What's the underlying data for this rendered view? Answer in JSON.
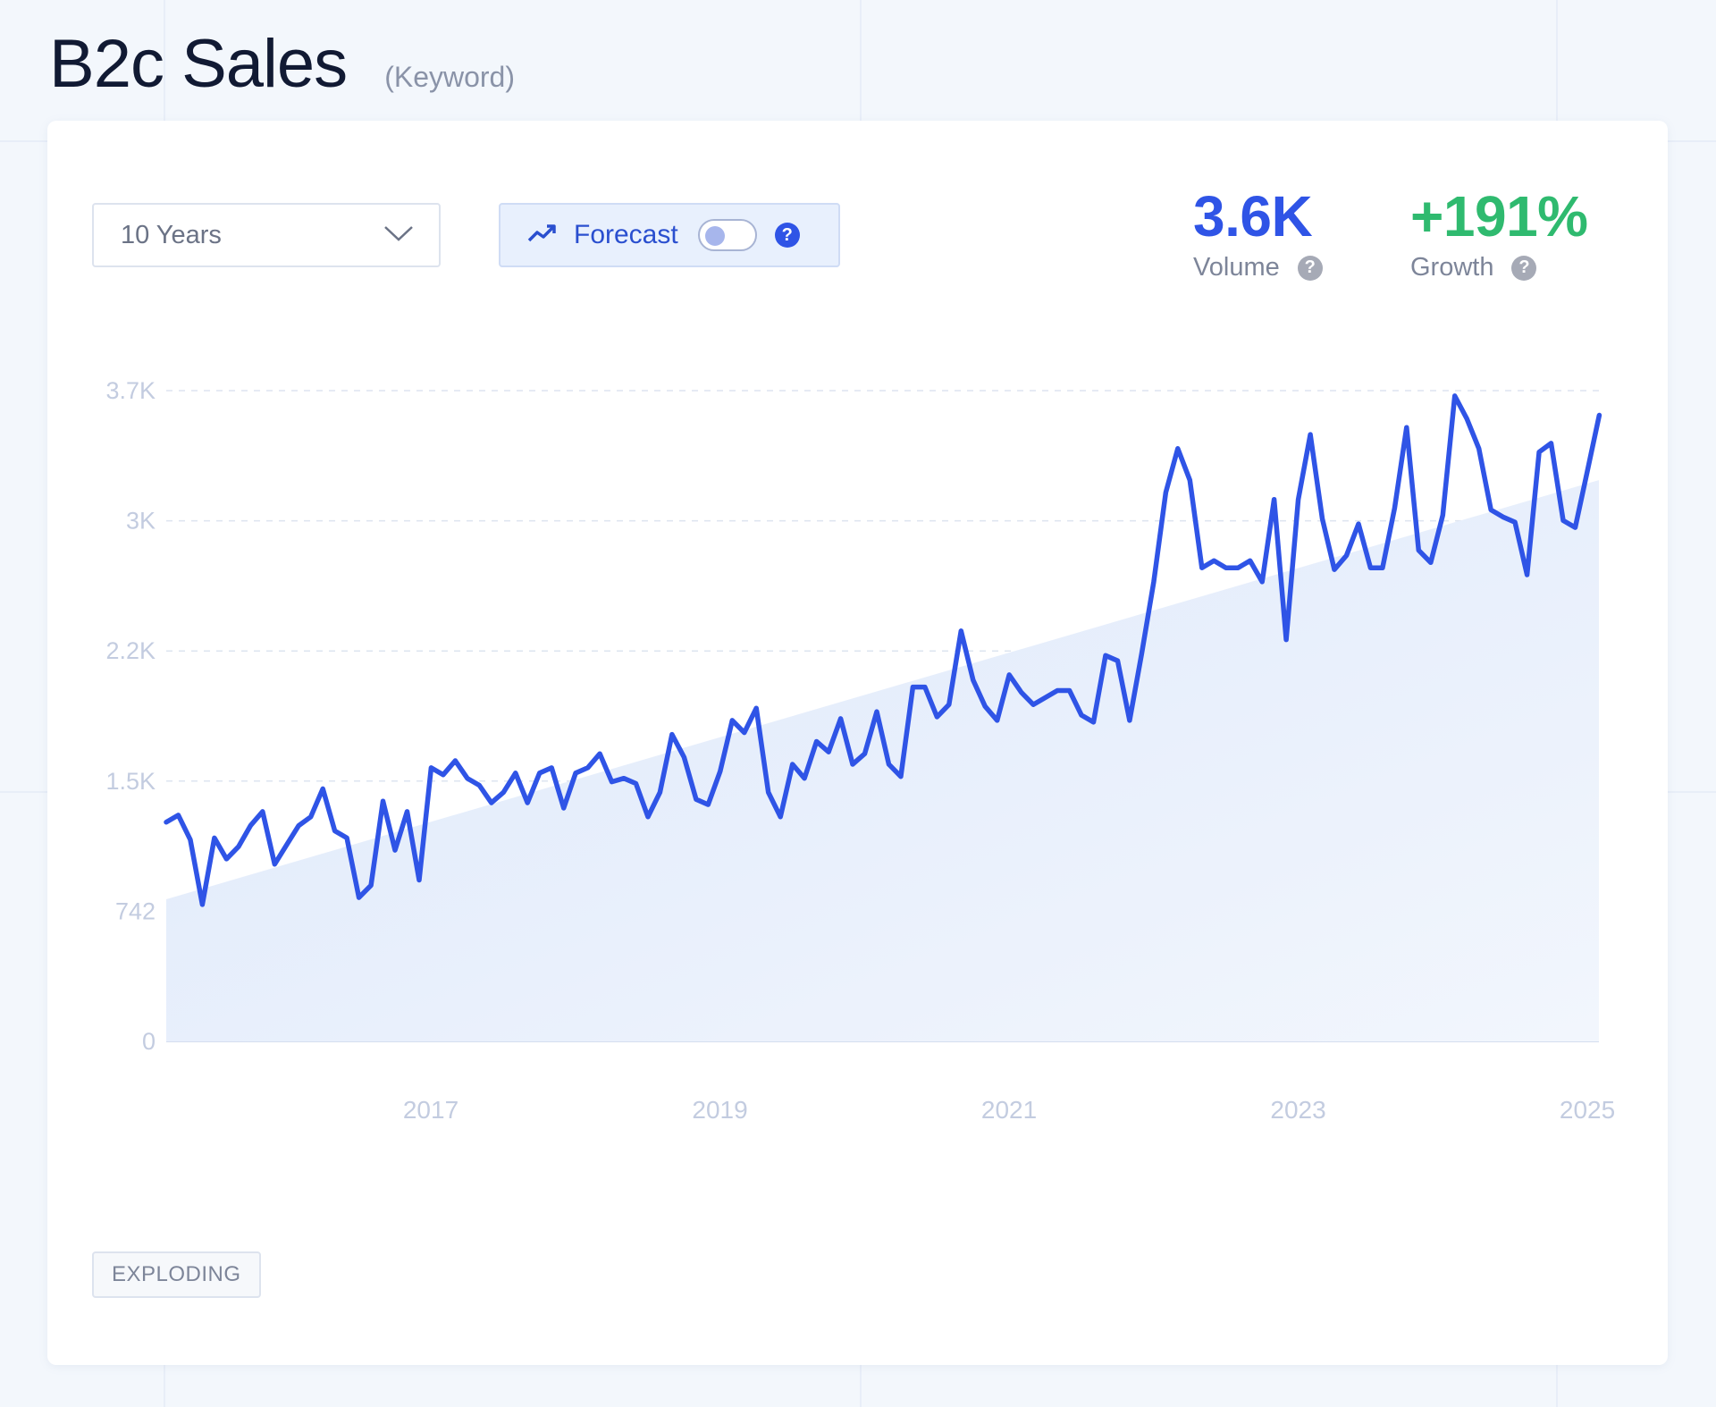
{
  "header": {
    "title": "B2c Sales",
    "subtitle": "(Keyword)"
  },
  "controls": {
    "range_value": "10 Years",
    "forecast_label": "Forecast",
    "forecast_enabled": false
  },
  "stats": {
    "volume": {
      "value": "3.6K",
      "label": "Volume",
      "color": "#2f54e6"
    },
    "growth": {
      "value": "+191%",
      "label": "Growth",
      "color": "#2fba6f"
    }
  },
  "badge": "EXPLODING",
  "icons": [
    "chevron-down-icon",
    "trend-up-icon",
    "help-icon"
  ],
  "chart_data": {
    "type": "line",
    "title": "",
    "xlabel": "",
    "ylabel": "",
    "y_ticks": [
      {
        "value": 0,
        "label": "0"
      },
      {
        "value": 742,
        "label": "742"
      },
      {
        "value": 1484,
        "label": "1.5K"
      },
      {
        "value": 2226,
        "label": "2.2K"
      },
      {
        "value": 2968,
        "label": "3K"
      },
      {
        "value": 3710,
        "label": "3.7K"
      }
    ],
    "ylim": [
      0,
      3710
    ],
    "x_ticks": [
      {
        "value": 2017,
        "label": "2017"
      },
      {
        "value": 2019,
        "label": "2019"
      },
      {
        "value": 2021,
        "label": "2021"
      },
      {
        "value": 2023,
        "label": "2023"
      },
      {
        "value": 2025,
        "label": "2025"
      }
    ],
    "xlim": [
      2015.17,
      2025.08
    ],
    "grid": true,
    "line_color": "#2f54e6",
    "trend_fill_color": "#e3ecfb",
    "trend": {
      "start": 810,
      "end": 3200
    },
    "series": [
      {
        "x_start": 2015.17,
        "x_step": 0.0833,
        "values": [
          1250,
          1290,
          1150,
          780,
          1160,
          1040,
          1110,
          1230,
          1310,
          1010,
          1120,
          1230,
          1280,
          1440,
          1200,
          1160,
          820,
          890,
          1370,
          1090,
          1310,
          920,
          1560,
          1520,
          1600,
          1500,
          1460,
          1360,
          1420,
          1530,
          1360,
          1530,
          1560,
          1330,
          1530,
          1560,
          1640,
          1480,
          1500,
          1470,
          1280,
          1420,
          1750,
          1620,
          1380,
          1350,
          1540,
          1830,
          1760,
          1900,
          1420,
          1280,
          1580,
          1500,
          1710,
          1650,
          1840,
          1580,
          1640,
          1880,
          1580,
          1510,
          2020,
          2020,
          1850,
          1920,
          2340,
          2060,
          1910,
          1830,
          2090,
          1990,
          1920,
          1960,
          2000,
          2000,
          1860,
          1820,
          2200,
          2170,
          1830,
          2210,
          2620,
          3130,
          3380,
          3200,
          2700,
          2740,
          2700,
          2700,
          2740,
          2620,
          3090,
          2290,
          3090,
          3460,
          2980,
          2690,
          2770,
          2950,
          2700,
          2700,
          3040,
          3500,
          2800,
          2730,
          3000,
          3680,
          3550,
          3380,
          3030,
          2990,
          2960,
          2660,
          3360,
          3410,
          2970,
          2930,
          3250,
          3570
        ]
      }
    ]
  }
}
